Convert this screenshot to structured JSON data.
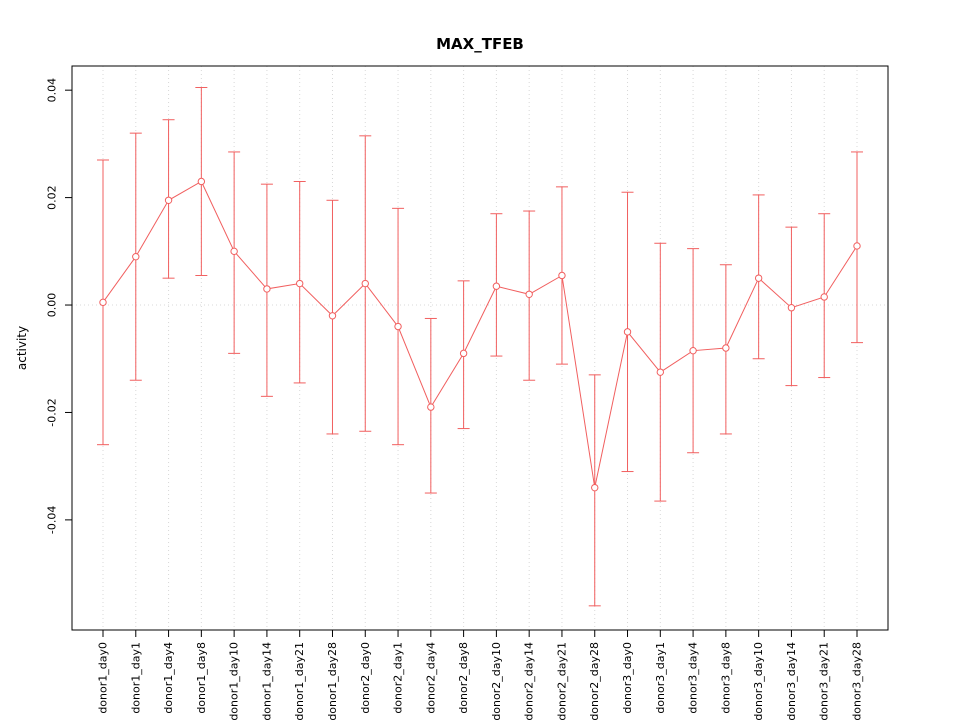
{
  "chart_data": {
    "type": "line",
    "title": "MAX_TFEB",
    "ylabel": "activity",
    "xlabel": "",
    "legend": "none",
    "grid": "dotted vertical line per category, dotted horizontal line at y=0",
    "categories": [
      "donor1_day0",
      "donor1_day1",
      "donor1_day4",
      "donor1_day8",
      "donor1_day10",
      "donor1_day14",
      "donor1_day21",
      "donor1_day28",
      "donor2_day0",
      "donor2_day1",
      "donor2_day4",
      "donor2_day8",
      "donor2_day10",
      "donor2_day14",
      "donor2_day21",
      "donor2_day28",
      "donor3_day0",
      "donor3_day1",
      "donor3_day4",
      "donor3_day8",
      "donor3_day10",
      "donor3_day14",
      "donor3_day21",
      "donor3_day28"
    ],
    "values": [
      0.0005,
      0.009,
      0.0195,
      0.023,
      0.01,
      0.003,
      0.004,
      -0.002,
      0.004,
      -0.004,
      -0.019,
      -0.009,
      0.0035,
      0.002,
      0.0055,
      -0.034,
      -0.005,
      -0.0125,
      -0.0085,
      -0.008,
      0.005,
      -0.0005,
      0.0015,
      0.011
    ],
    "lower": [
      -0.026,
      -0.014,
      0.005,
      0.0055,
      -0.009,
      -0.017,
      -0.0145,
      -0.024,
      -0.0235,
      -0.026,
      -0.035,
      -0.023,
      -0.0095,
      -0.014,
      -0.011,
      -0.056,
      -0.031,
      -0.0365,
      -0.0275,
      -0.024,
      -0.01,
      -0.015,
      -0.0135,
      -0.007
    ],
    "upper": [
      0.027,
      0.032,
      0.0345,
      0.0405,
      0.0285,
      0.0225,
      0.023,
      0.0195,
      0.0315,
      0.018,
      -0.0025,
      0.0045,
      0.017,
      0.0175,
      0.022,
      -0.013,
      0.021,
      0.0115,
      0.0105,
      0.0075,
      0.0205,
      0.0145,
      0.017,
      0.0285
    ],
    "yticks": [
      -0.04,
      -0.02,
      0.0,
      0.02,
      0.04
    ],
    "ylim": [
      -0.0605,
      0.0445
    ],
    "colors": {
      "series": "#f15f5f",
      "grid": "#d8d8d8",
      "axis": "#000000",
      "point_fill": "#ffffff"
    }
  }
}
